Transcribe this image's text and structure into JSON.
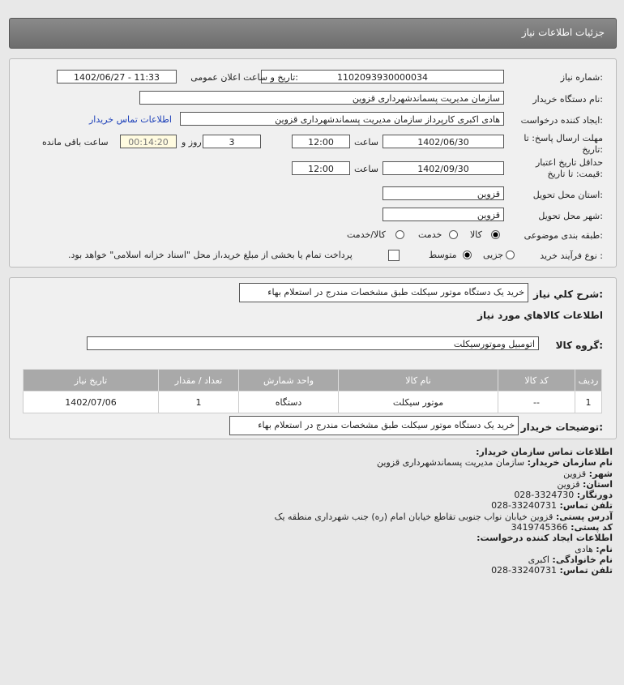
{
  "header": {
    "title": "جزئیات اطلاعات نیاز"
  },
  "form": {
    "need_number_label": "شماره نیاز:",
    "need_number": "1102093930000034",
    "announce_label": "تاریخ و ساعت اعلان عمومی:",
    "announce_value": "1402/06/27 - 11:33",
    "buyer_label": "نام دستگاه خریدار:",
    "buyer": "سازمان مدیریت پسماندشهرداری قزوین",
    "creator_label": "ایجاد کننده درخواست:",
    "creator": "هادی اکبری کارپرداز سازمان مدیریت پسماندشهرداری قزوین",
    "contact_link": "اطلاعات تماس خریدار",
    "deadline_label": "مهلت ارسال پاسخ: تا تاریخ:",
    "deadline_date": "1402/06/30",
    "time_label": "ساعت",
    "deadline_time": "12:00",
    "days": "3",
    "days_label": "روز و",
    "remaining": "00:14:20",
    "remaining_label": "ساعت باقی مانده",
    "validity_label": "حداقل تاریخ اعتبار قیمت: تا تاریخ:",
    "validity_date": "1402/09/30",
    "validity_time": "12:00",
    "province_label": "استان محل تحویل:",
    "province": "قزوین",
    "city_label": "شهر محل تحویل:",
    "city": "قزوین",
    "category_label": "طبقه بندی موضوعی:",
    "category_options": [
      "کالا",
      "خدمت",
      "کالا/خدمت"
    ],
    "category_selected": "کالا",
    "process_label": "نوع فرآیند خرید :",
    "process_options": [
      "جزیی",
      "متوسط"
    ],
    "process_selected": "متوسط",
    "payment_note": "پرداخت تمام یا بخشی از مبلغ خرید،از محل \"اسناد خزانه اسلامی\" خواهد بود."
  },
  "details": {
    "desc_label": "شرح کلي نياز:",
    "desc": "خرید یک دستگاه موتور سیکلت طبق مشخصات مندرج در استعلام بهاء",
    "goods_title": "اطلاعات کالاهاي مورد نياز",
    "group_label": "گروه کالا:",
    "group": "اتومبیل وموتورسیکلت",
    "table": {
      "headers": [
        "ردیف",
        "کد کالا",
        "نام کالا",
        "واحد شمارش",
        "تعداد / مقدار",
        "تاریخ نیاز"
      ],
      "rows": [
        [
          "1",
          "--",
          "موتور سیکلت",
          "دستگاه",
          "1",
          "1402/07/06"
        ]
      ]
    },
    "buyer_notes_label": "توضیحات خریدار:",
    "buyer_notes": "خرید یک دستگاه موتور سیکلت طبق مشخصات مندرج در استعلام بهاء"
  },
  "contact": {
    "title": "اطلاعات تماس سازمان خریدار:",
    "items": [
      {
        "k": "نام سازمان خریدار:",
        "v": "سازمان مدیریت پسماندشهرداری قزوین"
      },
      {
        "k": "شهر:",
        "v": "قزوین"
      },
      {
        "k": "استان:",
        "v": "قزوین"
      },
      {
        "k": "دورنگار:",
        "v": "028-3324730"
      },
      {
        "k": "تلفن تماس:",
        "v": "028-33240731"
      },
      {
        "k": "آدرس پستی:",
        "v": "قزوین خیابان نواب جنوبی تقاطع خیابان امام (ره) جنب شهرداری منطقه یک"
      },
      {
        "k": "کد پستی:",
        "v": "3419745366"
      }
    ],
    "creator_title": "اطلاعات ایجاد کننده درخواست:",
    "creator_items": [
      {
        "k": "نام:",
        "v": "هادی"
      },
      {
        "k": "نام خانوادگی:",
        "v": "اکبری"
      },
      {
        "k": "تلفن تماس:",
        "v": "028-33240731"
      }
    ]
  }
}
